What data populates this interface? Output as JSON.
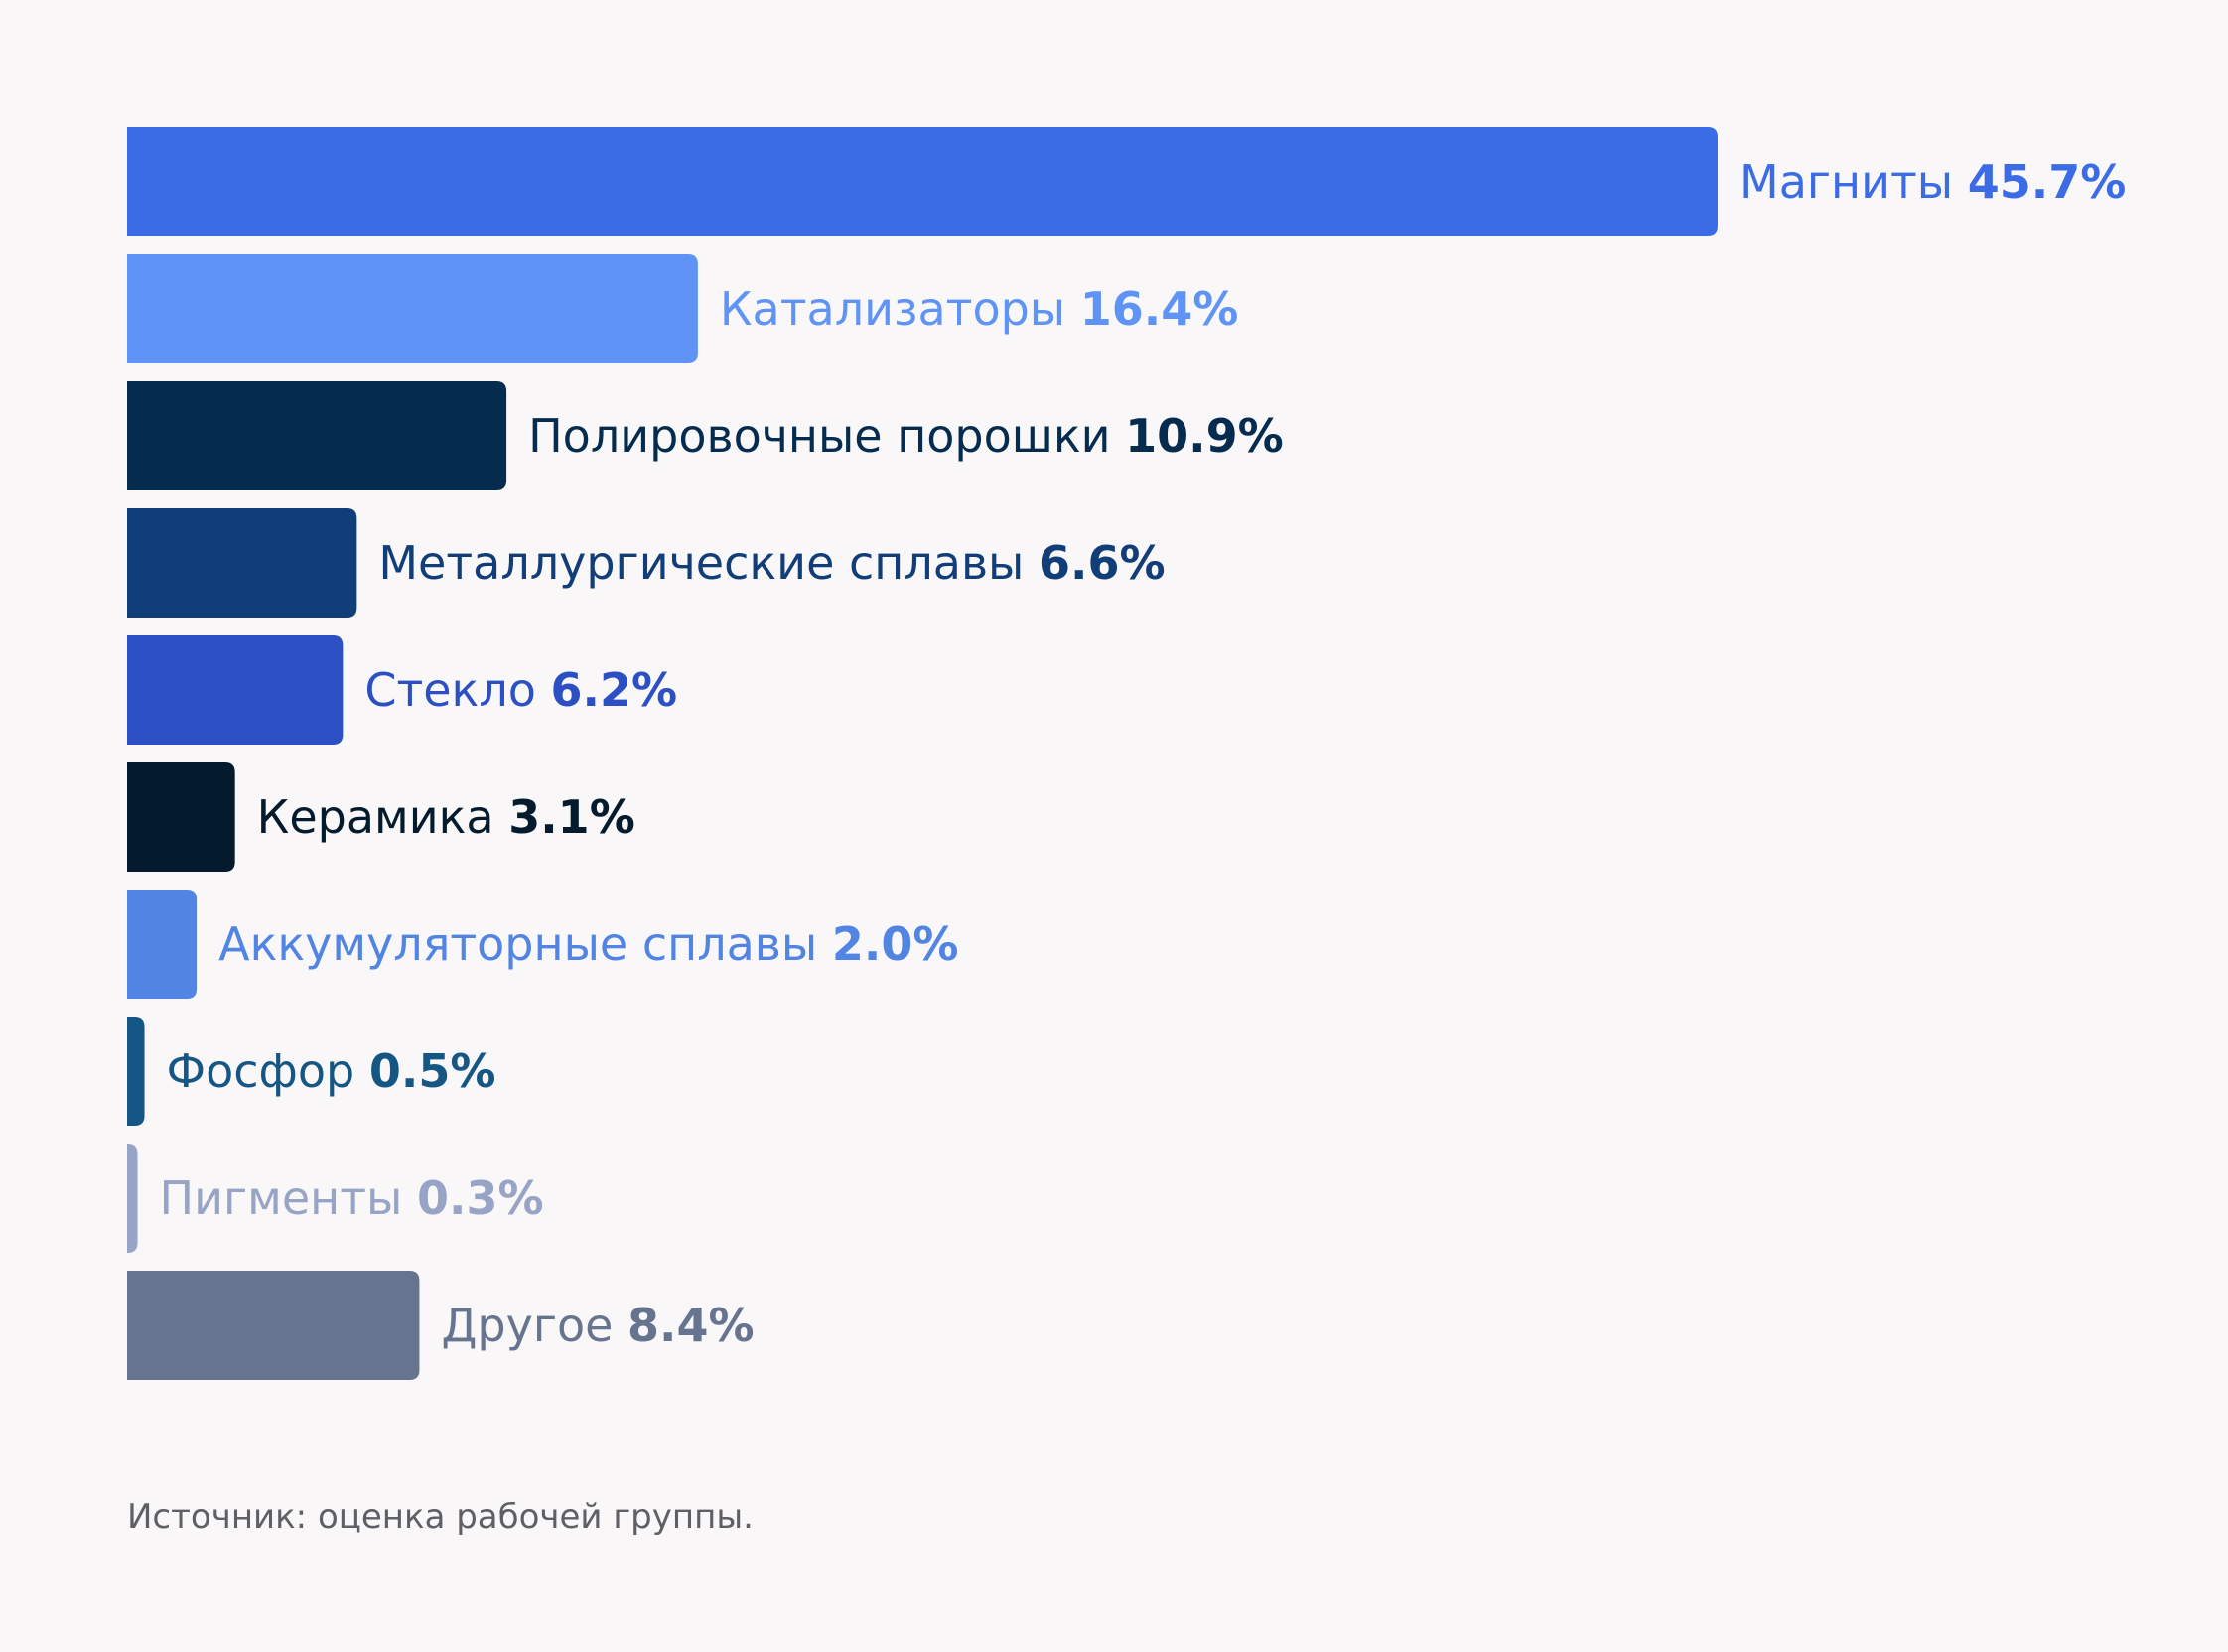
{
  "chart_data": {
    "type": "bar",
    "orientation": "horizontal",
    "categories": [
      "Магниты",
      "Катализаторы",
      "Полировочные порошки",
      "Металлургические сплавы",
      "Стекло",
      "Керамика",
      "Аккумуляторные сплавы",
      "Фосфор",
      "Пигменты",
      "Другое"
    ],
    "values": [
      45.7,
      16.4,
      10.9,
      6.6,
      6.2,
      3.1,
      2.0,
      0.5,
      0.3,
      8.4
    ],
    "value_labels": [
      "45.7%",
      "16.4%",
      "10.9%",
      "6.6%",
      "6.2%",
      "3.1%",
      "2.0%",
      "0.5%",
      "0.3%",
      "8.4%"
    ],
    "colors": [
      "#3c6be6",
      "#5f94f6",
      "#052c4e",
      "#113d78",
      "#2c50c3",
      "#031b2c",
      "#5184e3",
      "#155685",
      "#97a4c5",
      "#677490"
    ],
    "unit": "%",
    "xlim": [
      0,
      45.7
    ],
    "grid": false,
    "legend": "none"
  },
  "source_note": "Источник: оценка рабочей группы."
}
